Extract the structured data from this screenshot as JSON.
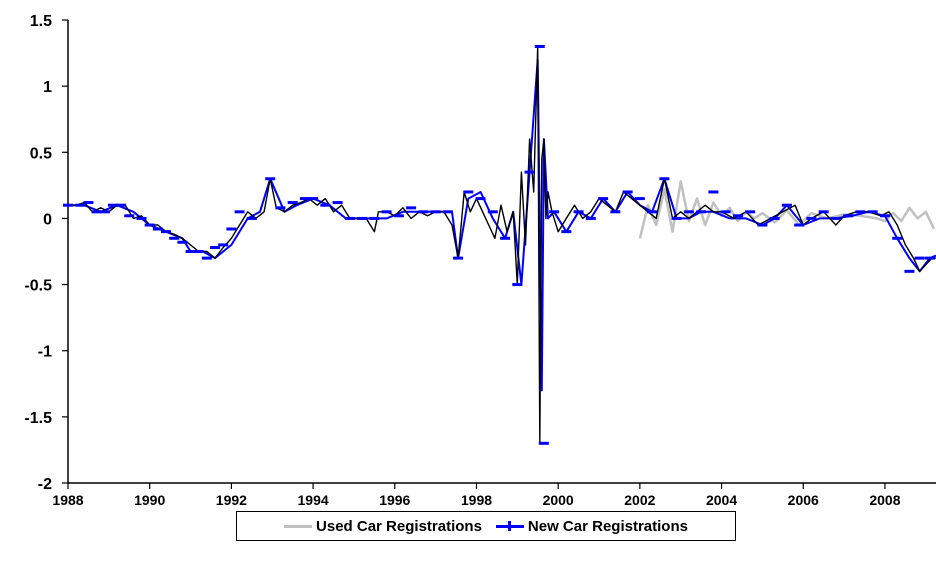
{
  "chart_data": {
    "type": "line",
    "title": "",
    "xlabel": "",
    "ylabel": "",
    "xlim": [
      1988,
      2009.25
    ],
    "ylim": [
      -2,
      1.5
    ],
    "x_ticks": [
      "1988",
      "1990",
      "1992",
      "1994",
      "1996",
      "1998",
      "2000",
      "2002",
      "2004",
      "2006",
      "2008"
    ],
    "y_ticks": [
      "1.5",
      "1",
      "0.5",
      "0",
      "-0.5",
      "-1",
      "-1.5",
      "-2"
    ],
    "grid": false,
    "legend_position": "bottom",
    "series": [
      {
        "name": "Used Car Registrations",
        "color": "#c0c0c0",
        "x": [
          2002.0,
          2002.2,
          2002.4,
          2002.6,
          2002.8,
          2003.0,
          2003.2,
          2003.4,
          2003.6,
          2003.8,
          2004.0,
          2004.2,
          2004.4,
          2004.6,
          2004.8,
          2005.0,
          2005.3,
          2005.6,
          2005.9,
          2006.2,
          2006.6,
          2007.0,
          2007.4,
          2007.8,
          2008.0,
          2008.2,
          2008.4,
          2008.6,
          2008.8,
          2009.0,
          2009.2
        ],
        "y": [
          -0.15,
          0.1,
          -0.05,
          0.22,
          -0.1,
          0.28,
          -0.02,
          0.15,
          -0.05,
          0.12,
          0.02,
          0.08,
          -0.02,
          0.05,
          0.0,
          0.04,
          -0.03,
          0.06,
          -0.05,
          0.04,
          0.0,
          0.03,
          0.02,
          0.0,
          -0.02,
          0.04,
          -0.02,
          0.08,
          0.0,
          0.05,
          -0.08
        ]
      },
      {
        "name": "New Car Registrations",
        "color": "#0000ff",
        "x": [
          1988.0,
          1988.4,
          1988.8,
          1989.2,
          1989.6,
          1990.0,
          1990.4,
          1990.8,
          1991.0,
          1991.3,
          1991.6,
          1992.0,
          1992.4,
          1992.7,
          1992.95,
          1993.3,
          1993.6,
          1994.0,
          1994.4,
          1994.8,
          1995.2,
          1995.5,
          1995.8,
          1996.2,
          1996.6,
          1997.0,
          1997.4,
          1997.55,
          1997.8,
          1998.1,
          1998.4,
          1998.7,
          1998.9,
          1999.1,
          1999.3,
          1999.5,
          1999.6,
          1999.65,
          1999.75,
          1999.9,
          2000.2,
          2000.5,
          2000.8,
          2001.1,
          2001.4,
          2001.7,
          2002.0,
          2002.3,
          2002.6,
          2002.9,
          2003.2,
          2003.5,
          2003.8,
          2004.2,
          2004.6,
          2005.0,
          2005.3,
          2005.6,
          2006.0,
          2006.4,
          2006.8,
          2007.2,
          2007.6,
          2008.0,
          2008.3,
          2008.6,
          2008.85,
          2009.1,
          2009.25
        ],
        "y": [
          0.1,
          0.1,
          0.05,
          0.1,
          0.05,
          -0.05,
          -0.1,
          -0.15,
          -0.25,
          -0.25,
          -0.3,
          -0.2,
          0.0,
          0.05,
          0.3,
          0.05,
          0.1,
          0.15,
          0.1,
          0.0,
          0.0,
          0.0,
          0.0,
          0.05,
          0.05,
          0.05,
          0.05,
          -0.3,
          0.15,
          0.2,
          0.0,
          -0.15,
          0.05,
          -0.5,
          0.35,
          1.2,
          -1.3,
          0.6,
          0.0,
          0.05,
          -0.1,
          0.05,
          0.0,
          0.15,
          0.05,
          0.2,
          0.1,
          0.05,
          0.3,
          0.0,
          0.0,
          0.05,
          0.05,
          0.0,
          0.0,
          -0.05,
          0.0,
          0.1,
          -0.05,
          0.0,
          0.0,
          0.02,
          0.05,
          0.02,
          -0.15,
          -0.3,
          -0.4,
          -0.3,
          -0.28
        ]
      },
      {
        "name": "",
        "color": "#000000",
        "x": [
          1988.0,
          1988.2,
          1988.4,
          1988.6,
          1988.8,
          1989.0,
          1989.2,
          1989.4,
          1989.6,
          1989.8,
          1990.0,
          1990.2,
          1990.4,
          1990.6,
          1990.8,
          1991.0,
          1991.2,
          1991.4,
          1991.6,
          1991.8,
          1992.0,
          1992.2,
          1992.4,
          1992.6,
          1992.8,
          1992.95,
          1993.1,
          1993.3,
          1993.5,
          1993.7,
          1993.9,
          1994.1,
          1994.3,
          1994.5,
          1994.7,
          1994.9,
          1995.1,
          1995.3,
          1995.5,
          1995.6,
          1995.8,
          1996.0,
          1996.2,
          1996.4,
          1996.6,
          1996.8,
          1997.0,
          1997.2,
          1997.4,
          1997.55,
          1997.7,
          1997.85,
          1998.0,
          1998.15,
          1998.3,
          1998.45,
          1998.6,
          1998.75,
          1998.9,
          1999.0,
          1999.1,
          1999.2,
          1999.3,
          1999.4,
          1999.5,
          1999.55,
          1999.6,
          1999.65,
          1999.7,
          1999.75,
          1999.85,
          2000.0,
          2000.2,
          2000.4,
          2000.6,
          2000.8,
          2001.0,
          2001.2,
          2001.4,
          2001.6,
          2001.8,
          2002.0,
          2002.2,
          2002.4,
          2002.6,
          2002.8,
          2003.0,
          2003.2,
          2003.4,
          2003.6,
          2003.8,
          2004.0,
          2004.3,
          2004.6,
          2004.9,
          2005.2,
          2005.5,
          2005.8,
          2006.0,
          2006.2,
          2006.5,
          2006.8,
          2007.0,
          2007.3,
          2007.6,
          2007.9,
          2008.1,
          2008.3,
          2008.5,
          2008.7,
          2008.85,
          2009.0,
          2009.15,
          2009.25
        ],
        "y": [
          0.1,
          0.1,
          0.12,
          0.05,
          0.08,
          0.05,
          0.1,
          0.1,
          0.0,
          0.02,
          -0.05,
          -0.05,
          -0.1,
          -0.12,
          -0.15,
          -0.2,
          -0.25,
          -0.25,
          -0.3,
          -0.22,
          -0.15,
          -0.05,
          0.05,
          0.0,
          0.05,
          0.3,
          0.08,
          0.05,
          0.1,
          0.12,
          0.15,
          0.1,
          0.15,
          0.05,
          0.1,
          0.0,
          0.0,
          0.0,
          -0.1,
          0.05,
          0.05,
          0.02,
          0.08,
          0.0,
          0.05,
          0.02,
          0.05,
          0.05,
          -0.05,
          -0.3,
          0.2,
          0.05,
          0.15,
          0.05,
          -0.05,
          -0.15,
          0.1,
          -0.1,
          0.05,
          -0.5,
          0.35,
          -0.2,
          0.6,
          0.2,
          1.3,
          -1.7,
          0.45,
          0.6,
          0.0,
          0.2,
          0.05,
          -0.1,
          0.0,
          0.1,
          0.0,
          0.05,
          0.15,
          0.1,
          0.05,
          0.2,
          0.15,
          0.1,
          0.05,
          0.0,
          0.3,
          0.0,
          0.05,
          0.0,
          0.05,
          0.1,
          0.05,
          0.05,
          0.0,
          0.05,
          -0.05,
          0.0,
          0.05,
          0.1,
          -0.05,
          0.0,
          0.05,
          -0.05,
          0.02,
          0.05,
          0.05,
          0.02,
          0.05,
          -0.05,
          -0.2,
          -0.3,
          -0.4,
          -0.35,
          -0.3,
          -0.3
        ]
      }
    ],
    "markers": {
      "color": "#0000ff",
      "x": [
        1988.0,
        1988.3,
        1988.5,
        1988.7,
        1988.9,
        1989.1,
        1989.3,
        1989.5,
        1989.8,
        1990.0,
        1990.2,
        1990.4,
        1990.6,
        1990.8,
        1991.0,
        1991.2,
        1991.4,
        1991.6,
        1991.8,
        1992.0,
        1992.2,
        1992.5,
        1992.95,
        1993.2,
        1993.5,
        1993.8,
        1994.0,
        1994.3,
        1994.6,
        1994.9,
        1995.2,
        1995.5,
        1995.8,
        1996.1,
        1996.4,
        1996.7,
        1997.0,
        1997.3,
        1997.55,
        1997.8,
        1998.1,
        1998.4,
        1998.7,
        1999.0,
        1999.3,
        1999.55,
        1999.65,
        1999.9,
        2000.2,
        2000.5,
        2000.8,
        2001.1,
        2001.4,
        2001.7,
        2002.0,
        2002.3,
        2002.6,
        2002.9,
        2003.2,
        2003.5,
        2003.8,
        2004.1,
        2004.4,
        2004.7,
        2005.0,
        2005.3,
        2005.6,
        2005.9,
        2006.2,
        2006.5,
        2006.8,
        2007.1,
        2007.4,
        2007.7,
        2008.0,
        2008.3,
        2008.6,
        2008.85,
        2009.1
      ],
      "y": [
        0.1,
        0.1,
        0.12,
        0.05,
        0.05,
        0.1,
        0.1,
        0.02,
        0.0,
        -0.05,
        -0.08,
        -0.1,
        -0.15,
        -0.18,
        -0.25,
        -0.25,
        -0.3,
        -0.22,
        -0.2,
        -0.08,
        0.05,
        0.0,
        0.3,
        0.08,
        0.12,
        0.15,
        0.15,
        0.1,
        0.12,
        0.0,
        0.0,
        0.0,
        0.05,
        0.02,
        0.08,
        0.05,
        0.05,
        0.05,
        -0.3,
        0.2,
        0.15,
        0.05,
        -0.15,
        -0.5,
        0.35,
        1.3,
        -1.7,
        0.05,
        -0.1,
        0.05,
        0.0,
        0.15,
        0.05,
        0.2,
        0.15,
        0.05,
        0.3,
        0.0,
        0.05,
        0.05,
        0.2,
        0.05,
        0.02,
        0.05,
        -0.05,
        0.0,
        0.1,
        -0.05,
        0.0,
        0.05,
        0.0,
        0.02,
        0.05,
        0.05,
        0.02,
        -0.15,
        -0.4,
        -0.3,
        -0.3
      ]
    }
  },
  "legend": {
    "items": [
      {
        "label": "Used Car Registrations",
        "color": "#c0c0c0"
      },
      {
        "label": "New Car Registrations",
        "color": "#0000ff"
      }
    ]
  }
}
